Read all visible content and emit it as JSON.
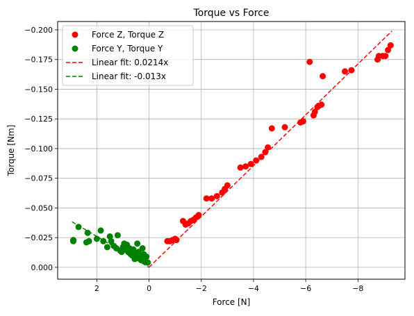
{
  "chart_data": {
    "type": "scatter",
    "title": "Torque vs Force",
    "xlabel": "Force [N]",
    "ylabel": "Torque [Nm]",
    "xlim": [
      3.5,
      -9.8
    ],
    "ylim": [
      0.01,
      -0.207
    ],
    "x_ticks": [
      2,
      0,
      -2,
      -4,
      -6,
      -8
    ],
    "x_tick_labels": [
      "2",
      "0",
      "−2",
      "−4",
      "−6",
      "−8"
    ],
    "y_ticks": [
      0.0,
      -0.025,
      -0.05,
      -0.075,
      -0.1,
      -0.125,
      -0.15,
      -0.175,
      -0.2
    ],
    "y_tick_labels": [
      "0.000",
      "−0.025",
      "−0.050",
      "−0.075",
      "−0.100",
      "−0.125",
      "−0.150",
      "−0.175",
      "−0.200"
    ],
    "grid": true,
    "legend_position": "top-left",
    "series": [
      {
        "name": "Force Z, Torque Z",
        "kind": "scatter",
        "color": "#ff0000",
        "points": [
          [
            -0.7,
            -0.022
          ],
          [
            -0.8,
            -0.022
          ],
          [
            -0.9,
            -0.023
          ],
          [
            -1.0,
            -0.024
          ],
          [
            -1.05,
            -0.023
          ],
          [
            -1.3,
            -0.039
          ],
          [
            -1.4,
            -0.036
          ],
          [
            -1.5,
            -0.037
          ],
          [
            -1.6,
            -0.039
          ],
          [
            -1.7,
            -0.04
          ],
          [
            -1.8,
            -0.042
          ],
          [
            -1.9,
            -0.044
          ],
          [
            -2.2,
            -0.058
          ],
          [
            -2.4,
            -0.058
          ],
          [
            -2.6,
            -0.06
          ],
          [
            -2.8,
            -0.063
          ],
          [
            -2.9,
            -0.066
          ],
          [
            -3.0,
            -0.069
          ],
          [
            -3.5,
            -0.084
          ],
          [
            -3.7,
            -0.085
          ],
          [
            -3.9,
            -0.087
          ],
          [
            -4.1,
            -0.09
          ],
          [
            -4.3,
            -0.093
          ],
          [
            -4.45,
            -0.097
          ],
          [
            -4.55,
            -0.101
          ],
          [
            -4.7,
            -0.117
          ],
          [
            -5.2,
            -0.118
          ],
          [
            -5.8,
            -0.122
          ],
          [
            -5.9,
            -0.123
          ],
          [
            -6.15,
            -0.173
          ],
          [
            -6.3,
            -0.128
          ],
          [
            -6.35,
            -0.131
          ],
          [
            -6.45,
            -0.135
          ],
          [
            -6.5,
            -0.136
          ],
          [
            -6.6,
            -0.137
          ],
          [
            -6.65,
            -0.161
          ],
          [
            -7.5,
            -0.165
          ],
          [
            -7.75,
            -0.166
          ],
          [
            -8.75,
            -0.175
          ],
          [
            -8.8,
            -0.178
          ],
          [
            -8.95,
            -0.178
          ],
          [
            -9.05,
            -0.178
          ],
          [
            -9.15,
            -0.183
          ],
          [
            -9.25,
            -0.187
          ]
        ]
      },
      {
        "name": "Force Y, Torque Y",
        "kind": "scatter",
        "color": "#008000",
        "points": [
          [
            2.9,
            -0.022
          ],
          [
            2.9,
            -0.023
          ],
          [
            2.7,
            -0.034
          ],
          [
            2.4,
            -0.021
          ],
          [
            2.35,
            -0.029
          ],
          [
            2.3,
            -0.022
          ],
          [
            2.0,
            -0.024
          ],
          [
            1.85,
            -0.031
          ],
          [
            1.75,
            -0.022
          ],
          [
            1.6,
            -0.017
          ],
          [
            1.5,
            -0.026
          ],
          [
            1.45,
            -0.022
          ],
          [
            1.35,
            -0.018
          ],
          [
            1.2,
            -0.027
          ],
          [
            1.25,
            -0.016
          ],
          [
            1.1,
            -0.014
          ],
          [
            1.0,
            -0.017
          ],
          [
            0.95,
            -0.02
          ],
          [
            0.9,
            -0.015
          ],
          [
            0.85,
            -0.019
          ],
          [
            0.8,
            -0.013
          ],
          [
            0.75,
            -0.016
          ],
          [
            0.7,
            -0.011
          ],
          [
            0.6,
            -0.015
          ],
          [
            0.55,
            -0.012
          ],
          [
            0.5,
            -0.009
          ],
          [
            0.45,
            -0.02
          ],
          [
            0.4,
            -0.013
          ],
          [
            0.35,
            -0.008
          ],
          [
            0.3,
            -0.01
          ],
          [
            0.25,
            -0.016
          ],
          [
            0.2,
            -0.007
          ],
          [
            0.15,
            -0.005
          ],
          [
            0.1,
            -0.009
          ],
          [
            0.05,
            -0.004
          ],
          [
            1.05,
            -0.013
          ],
          [
            0.65,
            -0.01
          ],
          [
            0.55,
            -0.007
          ],
          [
            0.3,
            -0.006
          ],
          [
            0.2,
            -0.011
          ]
        ]
      }
    ],
    "fits": [
      {
        "name": "Linear fit: 0.0214x",
        "kind": "dashed-line",
        "color": "#ff0000",
        "slope": 0.0214,
        "x_range": [
          0,
          -9.3
        ]
      },
      {
        "name": "Linear fit: -0.013x",
        "kind": "dashed-line",
        "color": "#008000",
        "slope": -0.013,
        "x_range": [
          2.95,
          0
        ]
      }
    ]
  }
}
